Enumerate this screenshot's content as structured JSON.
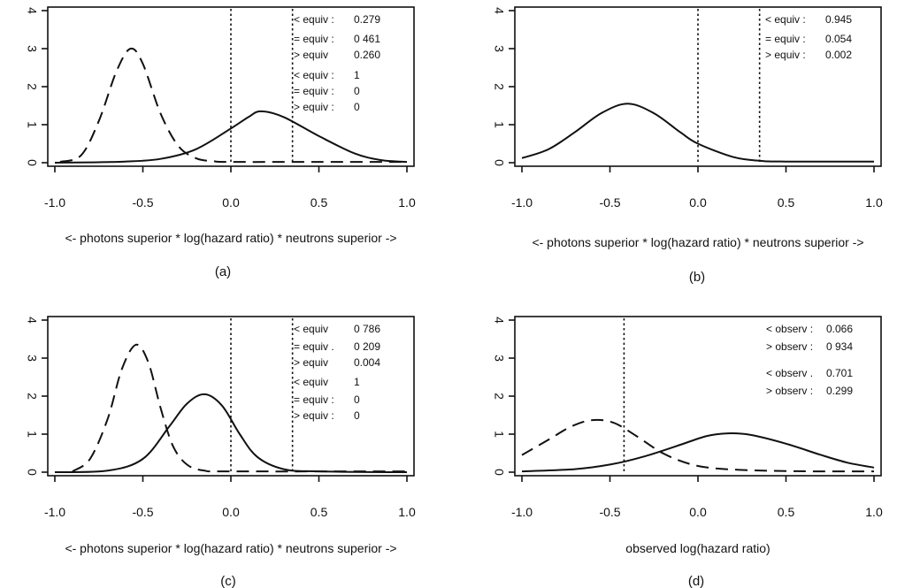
{
  "chart_data": [
    {
      "id": "a",
      "type": "line",
      "caption": "(a)",
      "xlabel": "<- photons superior  * log(hazard ratio)  * neutrons superior ->",
      "ylabel": "",
      "xlim": [
        -1.0,
        1.0
      ],
      "ylim": [
        0,
        4
      ],
      "xticks": [
        "-1.0",
        "-0.5",
        "0.0",
        "0.5",
        "1.0"
      ],
      "xtick_values": [
        -1.0,
        -0.5,
        0.0,
        0.5,
        1.0
      ],
      "yticks": [
        "0",
        "1",
        "2",
        "3",
        "4"
      ],
      "ytick_values": [
        0,
        1,
        2,
        3,
        4
      ],
      "reference_lines_x": [
        0.0,
        0.35
      ],
      "series": [
        {
          "style": "solid",
          "x": [
            -1.0,
            -0.8,
            -0.6,
            -0.4,
            -0.2,
            0.0,
            0.1,
            0.17,
            0.3,
            0.5,
            0.7,
            0.85,
            1.0
          ],
          "y": [
            0.0,
            0.01,
            0.03,
            0.1,
            0.35,
            0.9,
            1.2,
            1.35,
            1.2,
            0.7,
            0.25,
            0.07,
            0.02
          ]
        },
        {
          "style": "dashed",
          "x": [
            -0.97,
            -0.85,
            -0.75,
            -0.65,
            -0.57,
            -0.5,
            -0.4,
            -0.3,
            -0.2,
            -0.1,
            0.0,
            0.5,
            1.0
          ],
          "y": [
            0.02,
            0.2,
            1.1,
            2.4,
            3.0,
            2.6,
            1.3,
            0.45,
            0.12,
            0.04,
            0.02,
            0.02,
            0.02
          ]
        }
      ],
      "annotations": [
        [
          "< equiv :",
          "0.279"
        ],
        [
          "= equiv :",
          "0 461"
        ],
        [
          "> equiv",
          "0.260"
        ],
        [
          "< equiv :",
          "1"
        ],
        [
          "= equiv :",
          "0"
        ],
        [
          "> equiv :",
          "0"
        ]
      ]
    },
    {
      "id": "b",
      "type": "line",
      "caption": "(b)",
      "xlabel": "<- photons superior  * log(hazard ratio)  * neutrons superior ->",
      "ylabel": "",
      "xlim": [
        -1.0,
        1.0
      ],
      "ylim": [
        0,
        4
      ],
      "xticks": [
        "-1.0",
        "-0.5",
        "0.0",
        "0.5",
        "1.0"
      ],
      "xtick_values": [
        -1.0,
        -0.5,
        0.0,
        0.5,
        1.0
      ],
      "yticks": [
        "0",
        "1",
        "2",
        "3",
        "4"
      ],
      "ytick_values": [
        0,
        1,
        2,
        3,
        4
      ],
      "reference_lines_x": [
        0.0,
        0.35
      ],
      "series": [
        {
          "style": "solid",
          "x": [
            -1.0,
            -0.85,
            -0.7,
            -0.55,
            -0.4,
            -0.25,
            -0.1,
            0.0,
            0.2,
            0.35,
            0.5,
            1.0
          ],
          "y": [
            0.12,
            0.35,
            0.8,
            1.3,
            1.55,
            1.3,
            0.8,
            0.5,
            0.15,
            0.05,
            0.03,
            0.03
          ]
        }
      ],
      "annotations": [
        [
          "< equiv :",
          "0.945"
        ],
        [
          "= equiv :",
          "0.054"
        ],
        [
          "> equiv :",
          "0.002"
        ]
      ]
    },
    {
      "id": "c",
      "type": "line",
      "caption": "(c)",
      "xlabel": "<- photons superior  * log(hazard ratio)  * neutrons superior ->",
      "ylabel": "",
      "xlim": [
        -1.0,
        1.0
      ],
      "ylim": [
        0,
        4
      ],
      "xticks": [
        "-1.0",
        "-0.5",
        "0.0",
        "0.5",
        "1.0"
      ],
      "xtick_values": [
        -1.0,
        -0.5,
        0.0,
        0.5,
        1.0
      ],
      "yticks": [
        "0",
        "1",
        "2",
        "3",
        "4"
      ],
      "ytick_values": [
        0,
        1,
        2,
        3,
        4
      ],
      "reference_lines_x": [
        0.0,
        0.35
      ],
      "series": [
        {
          "style": "solid",
          "x": [
            -1.0,
            -0.7,
            -0.5,
            -0.35,
            -0.25,
            -0.15,
            -0.05,
            0.05,
            0.15,
            0.3,
            0.5,
            1.0
          ],
          "y": [
            0.0,
            0.04,
            0.35,
            1.2,
            1.8,
            2.05,
            1.75,
            1.0,
            0.4,
            0.08,
            0.02,
            0.0
          ]
        },
        {
          "style": "dashed",
          "x": [
            -0.9,
            -0.8,
            -0.7,
            -0.62,
            -0.54,
            -0.47,
            -0.4,
            -0.33,
            -0.25,
            -0.15,
            0.0,
            1.0
          ],
          "y": [
            0.02,
            0.35,
            1.4,
            2.7,
            3.35,
            2.9,
            1.7,
            0.7,
            0.2,
            0.04,
            0.02,
            0.02
          ]
        }
      ],
      "annotations": [
        [
          "< equiv",
          "0 786"
        ],
        [
          "= equiv .",
          "0 209"
        ],
        [
          "> equiv",
          "0.004"
        ],
        [
          "< equiv",
          "1"
        ],
        [
          "= equiv :",
          "0"
        ],
        [
          "> equiv :",
          "0"
        ]
      ]
    },
    {
      "id": "d",
      "type": "line",
      "caption": "(d)",
      "xlabel": "observed log(hazard ratio)",
      "ylabel": "",
      "xlim": [
        -1.0,
        1.0
      ],
      "ylim": [
        0,
        4
      ],
      "xticks": [
        "-1.0",
        "-0.5",
        "0.0",
        "0.5",
        "1.0"
      ],
      "xtick_values": [
        -1.0,
        -0.5,
        0.0,
        0.5,
        1.0
      ],
      "yticks": [
        "0",
        "1",
        "2",
        "3",
        "4"
      ],
      "ytick_values": [
        0,
        1,
        2,
        3,
        4
      ],
      "reference_lines_x": [
        -0.42
      ],
      "series": [
        {
          "style": "solid",
          "x": [
            -1.0,
            -0.7,
            -0.5,
            -0.3,
            -0.1,
            0.05,
            0.17,
            0.3,
            0.5,
            0.7,
            0.85,
            1.0
          ],
          "y": [
            0.02,
            0.08,
            0.2,
            0.42,
            0.72,
            0.95,
            1.02,
            0.98,
            0.75,
            0.45,
            0.25,
            0.12
          ]
        },
        {
          "style": "dashed",
          "x": [
            -1.0,
            -0.85,
            -0.72,
            -0.6,
            -0.48,
            -0.35,
            -0.2,
            -0.05,
            0.1,
            0.3,
            0.5,
            0.7,
            1.0
          ],
          "y": [
            0.45,
            0.85,
            1.2,
            1.37,
            1.3,
            0.95,
            0.5,
            0.22,
            0.1,
            0.05,
            0.03,
            0.02,
            0.02
          ]
        }
      ],
      "annotations": [
        [
          "< observ :",
          "0.066"
        ],
        [
          "> observ :",
          "0 934"
        ],
        [
          "< observ .",
          "0.701"
        ],
        [
          "> observ :",
          "0.299"
        ]
      ]
    }
  ]
}
